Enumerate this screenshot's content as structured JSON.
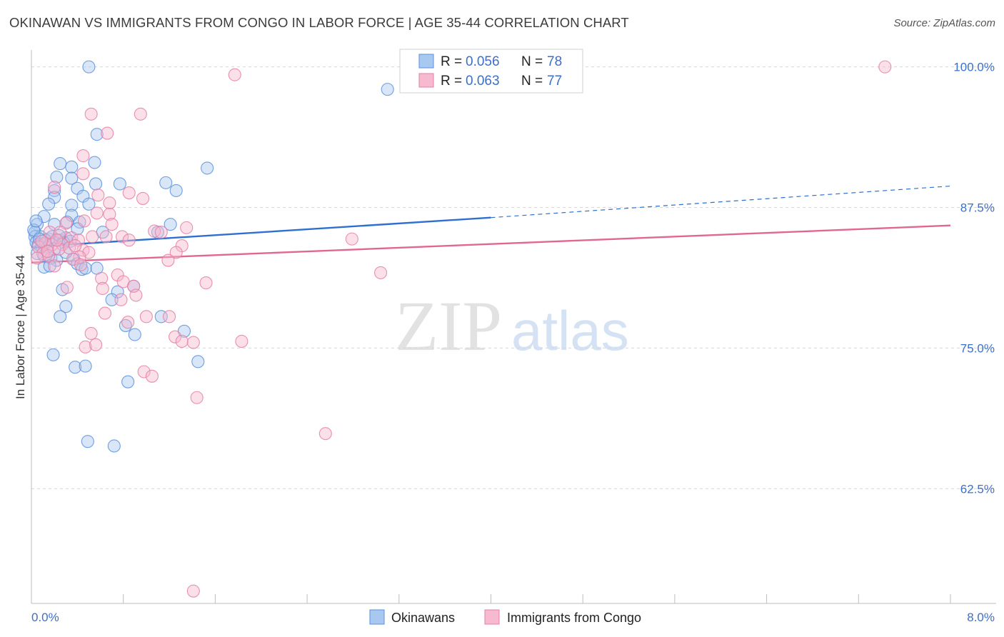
{
  "header": {
    "title": "OKINAWAN VS IMMIGRANTS FROM CONGO IN LABOR FORCE | AGE 35-44 CORRELATION CHART",
    "source": "Source: ZipAtlas.com"
  },
  "watermark": {
    "zip": "ZIP",
    "atlas": "atlas"
  },
  "colors": {
    "okinawans_fill": "#a9c8f0",
    "okinawans_stroke": "#5b8fdc",
    "okinawans_line": "#2f6fcf",
    "congo_fill": "#f6b9cf",
    "congo_stroke": "#e57fa3",
    "congo_line": "#e0688f",
    "tick_label": "#3d6fc8",
    "grid": "#d8d8d8"
  },
  "legend_top": {
    "rows": [
      {
        "r_label": "R =",
        "r_value": "0.056",
        "n_label": "N =",
        "n_value": "78"
      },
      {
        "r_label": "R =",
        "r_value": "0.063",
        "n_label": "N =",
        "n_value": "77"
      }
    ]
  },
  "chart_data": {
    "type": "scatter",
    "title": "OKINAWAN VS IMMIGRANTS FROM CONGO IN LABOR FORCE | AGE 35-44 CORRELATION CHART",
    "xlabel": "",
    "ylabel": "In Labor Force | Age 35-44",
    "xlim": [
      0,
      8
    ],
    "ylim": [
      52.3,
      101.5
    ],
    "x_tick_labels": [
      "0.0%",
      "8.0%"
    ],
    "y_ticks": [
      100,
      87.5,
      75,
      62.5
    ],
    "y_tick_labels": [
      "100.0%",
      "87.5%",
      "75.0%",
      "62.5%"
    ],
    "grid": true,
    "legend_position": "top-center",
    "series": [
      {
        "name": "Okinawans",
        "r": 0.056,
        "n": 78,
        "trend": {
          "x0": 0,
          "y0": 84.0,
          "x1": 4,
          "y1": 86.6,
          "dashed_to_x": 8,
          "dashed_to_y": 89.4
        },
        "points": [
          [
            0.5,
            100.0
          ],
          [
            3.1,
            98.0
          ],
          [
            0.57,
            94.0
          ],
          [
            0.55,
            91.5
          ],
          [
            0.25,
            91.4
          ],
          [
            0.35,
            91.1
          ],
          [
            1.53,
            91.0
          ],
          [
            0.22,
            90.2
          ],
          [
            0.35,
            90.1
          ],
          [
            0.56,
            89.6
          ],
          [
            0.77,
            89.6
          ],
          [
            1.17,
            89.7
          ],
          [
            0.4,
            89.2
          ],
          [
            1.26,
            89.0
          ],
          [
            0.2,
            89.0
          ],
          [
            0.2,
            88.4
          ],
          [
            0.45,
            88.5
          ],
          [
            0.15,
            87.8
          ],
          [
            0.5,
            87.8
          ],
          [
            0.35,
            87.7
          ],
          [
            0.11,
            86.7
          ],
          [
            0.35,
            86.8
          ],
          [
            0.31,
            86.2
          ],
          [
            0.2,
            86.0
          ],
          [
            0.42,
            86.2
          ],
          [
            0.05,
            86.0
          ],
          [
            1.21,
            86.0
          ],
          [
            0.4,
            85.6
          ],
          [
            0.62,
            85.3
          ],
          [
            1.1,
            85.3
          ],
          [
            0.03,
            85.3
          ],
          [
            0.03,
            84.9
          ],
          [
            0.08,
            84.9
          ],
          [
            0.15,
            84.7
          ],
          [
            0.18,
            84.9
          ],
          [
            0.25,
            84.6
          ],
          [
            0.3,
            84.8
          ],
          [
            0.34,
            84.5
          ],
          [
            0.04,
            84.4
          ],
          [
            0.06,
            84.2
          ],
          [
            0.09,
            84.0
          ],
          [
            0.14,
            84.0
          ],
          [
            0.2,
            83.8
          ],
          [
            0.28,
            84.4
          ],
          [
            0.05,
            83.4
          ],
          [
            0.11,
            83.2
          ],
          [
            0.17,
            83.0
          ],
          [
            0.22,
            82.8
          ],
          [
            0.37,
            82.9
          ],
          [
            0.4,
            82.5
          ],
          [
            0.11,
            82.2
          ],
          [
            0.16,
            82.3
          ],
          [
            0.44,
            82.0
          ],
          [
            0.47,
            82.1
          ],
          [
            0.57,
            82.1
          ],
          [
            0.27,
            80.2
          ],
          [
            0.75,
            80.0
          ],
          [
            0.89,
            80.5
          ],
          [
            0.7,
            79.3
          ],
          [
            0.3,
            78.7
          ],
          [
            0.25,
            77.8
          ],
          [
            1.13,
            77.8
          ],
          [
            0.82,
            77.0
          ],
          [
            0.9,
            76.2
          ],
          [
            1.33,
            76.5
          ],
          [
            0.19,
            74.4
          ],
          [
            1.45,
            73.8
          ],
          [
            0.38,
            73.3
          ],
          [
            0.47,
            73.4
          ],
          [
            0.84,
            72.0
          ],
          [
            0.49,
            66.7
          ],
          [
            0.72,
            66.3
          ],
          [
            0.02,
            85.5
          ],
          [
            0.04,
            86.3
          ],
          [
            0.24,
            85.0
          ],
          [
            0.12,
            84.6
          ],
          [
            0.07,
            84.7
          ],
          [
            0.3,
            83.5
          ]
        ]
      },
      {
        "name": "Immigrants from Congo",
        "r": 0.063,
        "n": 77,
        "trend": {
          "x0": 0,
          "y0": 82.6,
          "x1": 8,
          "y1": 85.9
        },
        "points": [
          [
            7.43,
            100.0
          ],
          [
            1.77,
            99.3
          ],
          [
            0.52,
            95.8
          ],
          [
            0.95,
            95.8
          ],
          [
            0.66,
            94.1
          ],
          [
            0.45,
            92.1
          ],
          [
            0.45,
            90.5
          ],
          [
            0.2,
            89.3
          ],
          [
            0.85,
            88.8
          ],
          [
            0.97,
            88.3
          ],
          [
            0.58,
            88.6
          ],
          [
            0.68,
            87.9
          ],
          [
            0.57,
            87.0
          ],
          [
            0.68,
            86.9
          ],
          [
            0.3,
            86.1
          ],
          [
            0.46,
            86.3
          ],
          [
            0.7,
            86.0
          ],
          [
            1.35,
            85.7
          ],
          [
            1.07,
            85.4
          ],
          [
            1.13,
            85.3
          ],
          [
            0.16,
            85.3
          ],
          [
            0.25,
            85.3
          ],
          [
            0.53,
            84.9
          ],
          [
            0.79,
            84.9
          ],
          [
            0.35,
            84.8
          ],
          [
            0.41,
            84.6
          ],
          [
            0.85,
            84.6
          ],
          [
            2.79,
            84.7
          ],
          [
            0.12,
            84.3
          ],
          [
            0.18,
            84.2
          ],
          [
            0.27,
            84.2
          ],
          [
            1.31,
            84.1
          ],
          [
            0.06,
            84.0
          ],
          [
            0.24,
            83.8
          ],
          [
            0.45,
            83.7
          ],
          [
            0.5,
            83.5
          ],
          [
            1.26,
            83.5
          ],
          [
            0.1,
            83.4
          ],
          [
            0.15,
            83.2
          ],
          [
            0.42,
            83.1
          ],
          [
            0.05,
            83.0
          ],
          [
            0.36,
            82.9
          ],
          [
            0.43,
            82.4
          ],
          [
            1.19,
            82.8
          ],
          [
            0.2,
            82.3
          ],
          [
            3.04,
            81.7
          ],
          [
            0.75,
            81.5
          ],
          [
            0.61,
            81.2
          ],
          [
            0.8,
            80.9
          ],
          [
            1.52,
            80.8
          ],
          [
            0.89,
            80.5
          ],
          [
            0.31,
            80.4
          ],
          [
            0.62,
            80.3
          ],
          [
            0.91,
            79.7
          ],
          [
            0.78,
            79.3
          ],
          [
            0.64,
            78.1
          ],
          [
            1.0,
            77.8
          ],
          [
            1.2,
            77.8
          ],
          [
            0.84,
            77.3
          ],
          [
            0.52,
            76.3
          ],
          [
            1.25,
            76.0
          ],
          [
            1.31,
            75.6
          ],
          [
            1.41,
            75.5
          ],
          [
            1.83,
            75.6
          ],
          [
            0.47,
            75.1
          ],
          [
            0.56,
            75.3
          ],
          [
            0.98,
            72.9
          ],
          [
            1.05,
            72.5
          ],
          [
            1.44,
            70.6
          ],
          [
            2.56,
            67.4
          ],
          [
            1.41,
            53.4
          ],
          [
            0.09,
            84.5
          ],
          [
            0.14,
            83.6
          ],
          [
            0.33,
            83.9
          ],
          [
            0.22,
            84.6
          ],
          [
            0.38,
            84.1
          ],
          [
            0.65,
            84.9
          ]
        ]
      }
    ]
  },
  "legend_bottom": {
    "items": [
      {
        "label": "Okinawans"
      },
      {
        "label": "Immigrants from Congo"
      }
    ]
  }
}
